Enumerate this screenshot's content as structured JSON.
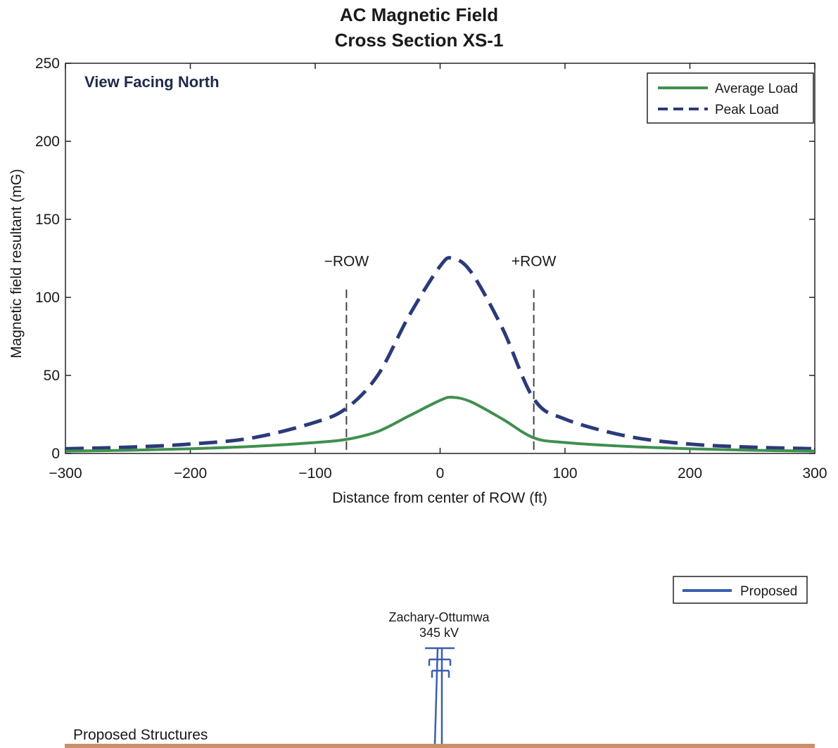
{
  "chart_data": [
    {
      "type": "line",
      "title": "AC Magnetic Field",
      "subtitle": "Cross Section XS-1",
      "xlabel": "Distance from center of ROW (ft)",
      "ylabel": "Magnetic field resultant (mG)",
      "xlim": [
        -300,
        300
      ],
      "ylim": [
        0,
        250
      ],
      "xticks": [
        -300,
        -200,
        -100,
        0,
        100,
        200,
        300
      ],
      "yticks": [
        0,
        50,
        100,
        150,
        200,
        250
      ],
      "annotation": "View Facing North",
      "legend_position": "top-right",
      "grid": false,
      "row_markers": [
        {
          "label": "-ROW",
          "x": -75
        },
        {
          "label": "+ROW",
          "x": 75
        }
      ],
      "x": [
        -300,
        -250,
        -200,
        -150,
        -100,
        -75,
        -50,
        -25,
        0,
        10,
        25,
        50,
        75,
        100,
        150,
        200,
        250,
        300
      ],
      "series": [
        {
          "name": "Average Load",
          "color": "#3f8f4f",
          "style": "solid",
          "values": [
            1.5,
            2,
            3,
            4.5,
            7,
            9,
            14,
            24,
            34,
            36,
            33,
            22,
            10,
            7,
            4.5,
            3,
            2,
            1.5
          ]
        },
        {
          "name": "Peak Load",
          "color": "#2b3a7a",
          "style": "dashed",
          "values": [
            3,
            4,
            6,
            10,
            20,
            29,
            50,
            88,
            120,
            125,
            116,
            80,
            35,
            22,
            11,
            6,
            4,
            3
          ]
        }
      ]
    },
    {
      "type": "diagram",
      "legend": [
        "Proposed"
      ],
      "legend_color": "#3a5fae",
      "structure_label": "Zachary-Ottumwa",
      "structure_voltage": "345 kV",
      "ground_label": "Proposed Structures",
      "ground_color": "#c9906a"
    }
  ]
}
